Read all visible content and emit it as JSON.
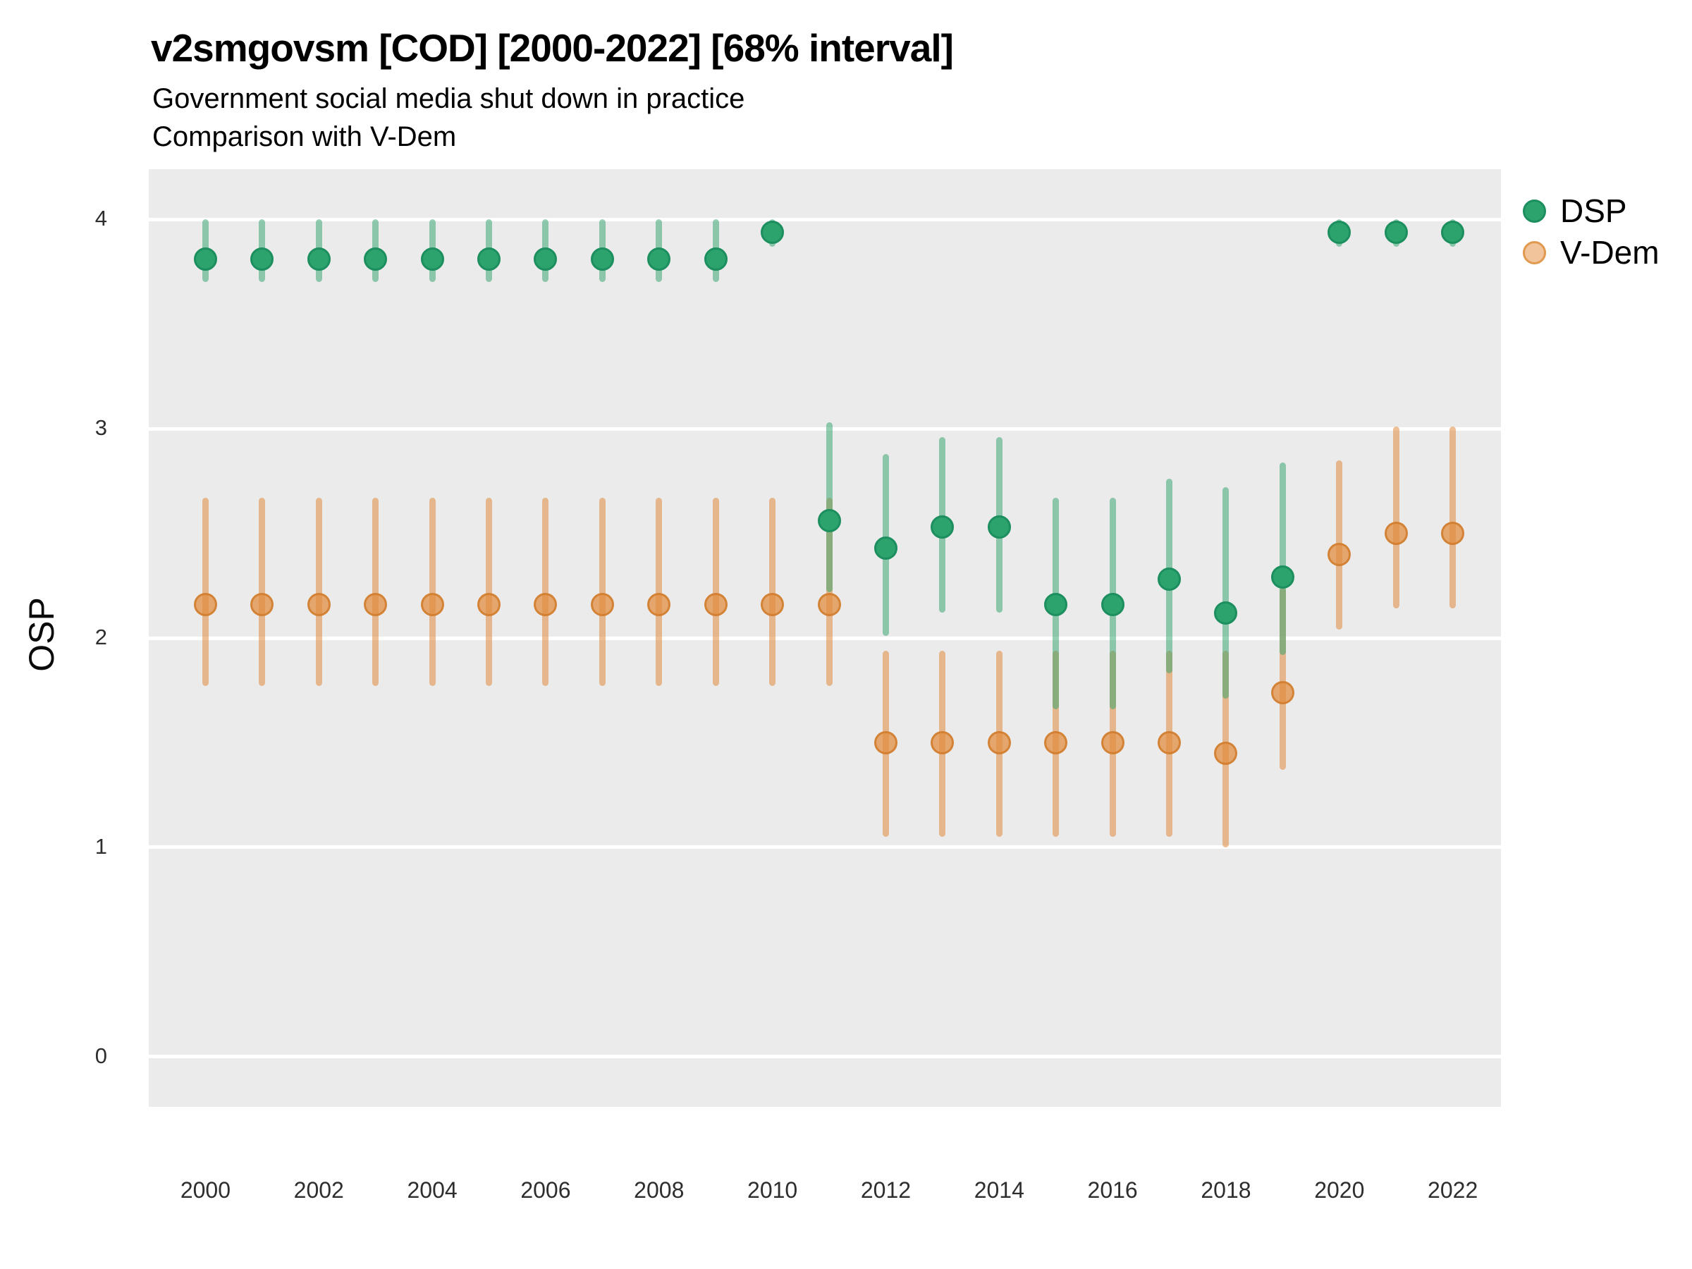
{
  "colors": {
    "panel_bg": "#EBEBEB",
    "grid": "#FFFFFF",
    "dsp_point_fill": "#2CA26C",
    "dsp_point_border": "#1D8F5F",
    "dsp_bar": "rgba(44,162,108,0.5)",
    "vdem_point_fill": "rgba(224,138,60,0.72)",
    "vdem_point_border": "rgba(208,125,48,0.9)",
    "vdem_bar": "rgba(224,138,60,0.55)",
    "tick_text": "#2e2e2e",
    "title_text": "#000000"
  },
  "chart_data": {
    "type": "scatter",
    "title": "v2smgovsm [COD] [2000-2022] [68% interval]",
    "subtitle1": "Government social media shut down in practice",
    "subtitle2": "Comparison with V-Dem",
    "ylabel": "OSP",
    "xlabel": "",
    "grid": "on",
    "legend_position": "right",
    "interval_note": "68% interval",
    "x_ticks": [
      2000,
      2002,
      2004,
      2006,
      2008,
      2010,
      2012,
      2014,
      2016,
      2018,
      2020,
      2022
    ],
    "y_ticks": [
      0,
      1,
      2,
      3,
      4
    ],
    "xlim": [
      1999.0,
      2022.85
    ],
    "ylim": [
      -0.24,
      4.24
    ],
    "legend": [
      {
        "label": "DSP",
        "fill": "#2CA26C",
        "border": "#1D8F5F"
      },
      {
        "label": "V-Dem",
        "fill": "#F2C49B",
        "border": "#E1984F"
      }
    ],
    "series": [
      {
        "name": "DSP",
        "points": [
          {
            "year": 2000,
            "value": 3.81,
            "lo": 3.7,
            "hi": 4.0
          },
          {
            "year": 2001,
            "value": 3.81,
            "lo": 3.7,
            "hi": 4.0
          },
          {
            "year": 2002,
            "value": 3.81,
            "lo": 3.7,
            "hi": 4.0
          },
          {
            "year": 2003,
            "value": 3.81,
            "lo": 3.7,
            "hi": 4.0
          },
          {
            "year": 2004,
            "value": 3.81,
            "lo": 3.7,
            "hi": 4.0
          },
          {
            "year": 2005,
            "value": 3.81,
            "lo": 3.7,
            "hi": 4.0
          },
          {
            "year": 2006,
            "value": 3.81,
            "lo": 3.7,
            "hi": 4.0
          },
          {
            "year": 2007,
            "value": 3.81,
            "lo": 3.7,
            "hi": 4.0
          },
          {
            "year": 2008,
            "value": 3.81,
            "lo": 3.7,
            "hi": 4.0
          },
          {
            "year": 2009,
            "value": 3.81,
            "lo": 3.7,
            "hi": 4.0
          },
          {
            "year": 2010,
            "value": 3.94,
            "lo": 3.87,
            "hi": 4.0
          },
          {
            "year": 2011,
            "value": 2.56,
            "lo": 2.22,
            "hi": 3.03
          },
          {
            "year": 2012,
            "value": 2.43,
            "lo": 2.01,
            "hi": 2.88
          },
          {
            "year": 2013,
            "value": 2.53,
            "lo": 2.12,
            "hi": 2.96
          },
          {
            "year": 2014,
            "value": 2.53,
            "lo": 2.12,
            "hi": 2.96
          },
          {
            "year": 2015,
            "value": 2.16,
            "lo": 1.66,
            "hi": 2.67
          },
          {
            "year": 2016,
            "value": 2.16,
            "lo": 1.66,
            "hi": 2.67
          },
          {
            "year": 2017,
            "value": 2.28,
            "lo": 1.83,
            "hi": 2.76
          },
          {
            "year": 2018,
            "value": 2.12,
            "lo": 1.71,
            "hi": 2.72
          },
          {
            "year": 2019,
            "value": 2.29,
            "lo": 1.92,
            "hi": 2.84
          },
          {
            "year": 2020,
            "value": 3.94,
            "lo": 3.87,
            "hi": 4.0
          },
          {
            "year": 2021,
            "value": 3.94,
            "lo": 3.87,
            "hi": 4.0
          },
          {
            "year": 2022,
            "value": 3.94,
            "lo": 3.87,
            "hi": 4.0
          }
        ]
      },
      {
        "name": "V-Dem",
        "points": [
          {
            "year": 2000,
            "value": 2.16,
            "lo": 1.77,
            "hi": 2.67
          },
          {
            "year": 2001,
            "value": 2.16,
            "lo": 1.77,
            "hi": 2.67
          },
          {
            "year": 2002,
            "value": 2.16,
            "lo": 1.77,
            "hi": 2.67
          },
          {
            "year": 2003,
            "value": 2.16,
            "lo": 1.77,
            "hi": 2.67
          },
          {
            "year": 2004,
            "value": 2.16,
            "lo": 1.77,
            "hi": 2.67
          },
          {
            "year": 2005,
            "value": 2.16,
            "lo": 1.77,
            "hi": 2.67
          },
          {
            "year": 2006,
            "value": 2.16,
            "lo": 1.77,
            "hi": 2.67
          },
          {
            "year": 2007,
            "value": 2.16,
            "lo": 1.77,
            "hi": 2.67
          },
          {
            "year": 2008,
            "value": 2.16,
            "lo": 1.77,
            "hi": 2.67
          },
          {
            "year": 2009,
            "value": 2.16,
            "lo": 1.77,
            "hi": 2.67
          },
          {
            "year": 2010,
            "value": 2.16,
            "lo": 1.77,
            "hi": 2.67
          },
          {
            "year": 2011,
            "value": 2.16,
            "lo": 1.77,
            "hi": 2.67
          },
          {
            "year": 2012,
            "value": 1.5,
            "lo": 1.05,
            "hi": 1.94
          },
          {
            "year": 2013,
            "value": 1.5,
            "lo": 1.05,
            "hi": 1.94
          },
          {
            "year": 2014,
            "value": 1.5,
            "lo": 1.05,
            "hi": 1.94
          },
          {
            "year": 2015,
            "value": 1.5,
            "lo": 1.05,
            "hi": 1.94
          },
          {
            "year": 2016,
            "value": 1.5,
            "lo": 1.05,
            "hi": 1.94
          },
          {
            "year": 2017,
            "value": 1.5,
            "lo": 1.05,
            "hi": 1.94
          },
          {
            "year": 2018,
            "value": 1.45,
            "lo": 1.0,
            "hi": 1.94
          },
          {
            "year": 2019,
            "value": 1.74,
            "lo": 1.37,
            "hi": 2.24
          },
          {
            "year": 2020,
            "value": 2.4,
            "lo": 2.04,
            "hi": 2.85
          },
          {
            "year": 2021,
            "value": 2.5,
            "lo": 2.14,
            "hi": 3.01
          },
          {
            "year": 2022,
            "value": 2.5,
            "lo": 2.14,
            "hi": 3.01
          }
        ]
      }
    ]
  }
}
